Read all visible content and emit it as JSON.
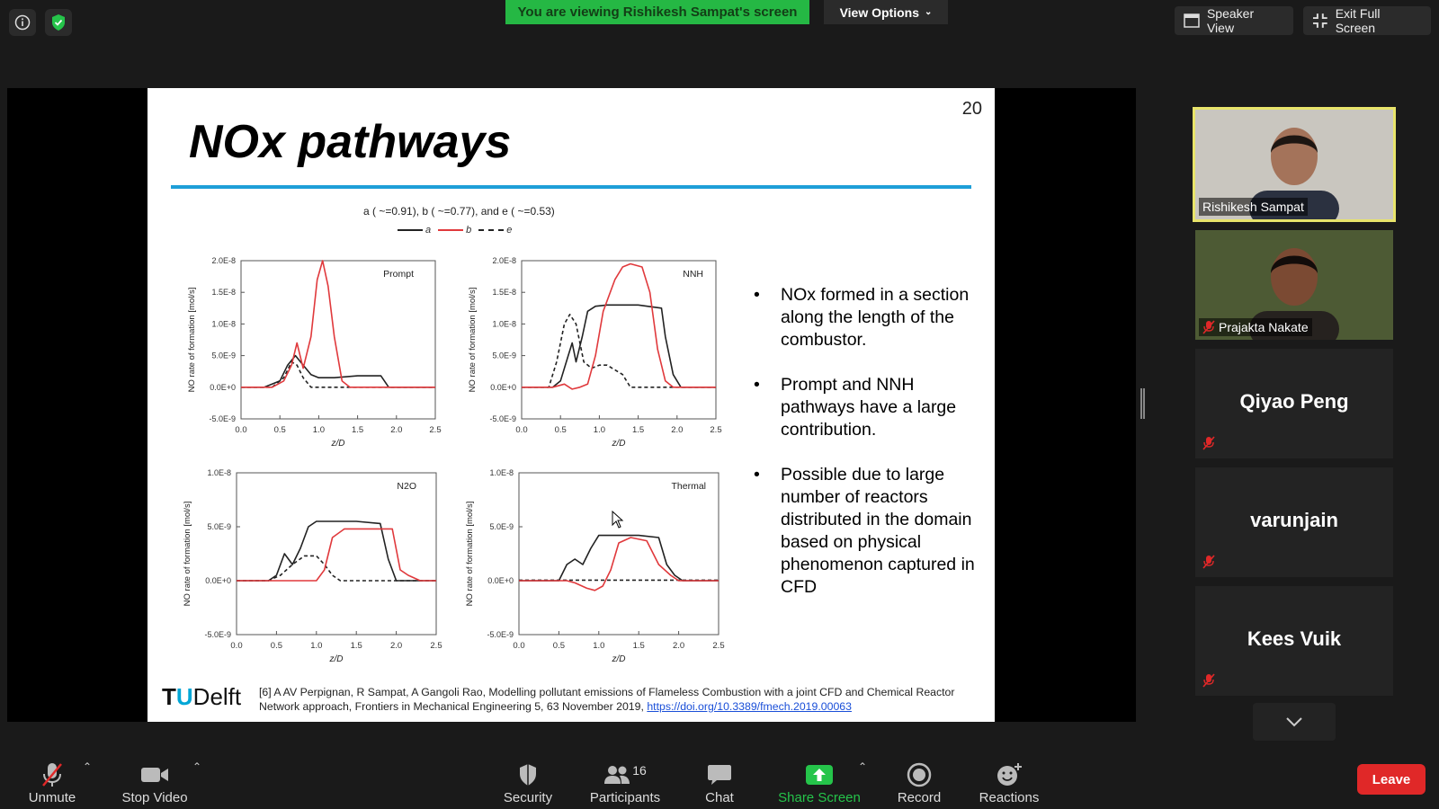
{
  "top_bar": {
    "share_banner": "You are viewing Rishikesh Sampat's screen",
    "view_options": "View Options",
    "speaker_view": "Speaker View",
    "exit_full_screen": "Exit Full Screen"
  },
  "slide": {
    "number": "20",
    "title": "NOx pathways",
    "chart_caption": "a ( ~=0.91), b ( ~=0.77), and e ( ~=0.53)",
    "legend": [
      "a",
      "b",
      "e"
    ],
    "bullets": [
      "NOx formed in a section along the length of the combustor.",
      "Prompt and NNH pathways have a large contribution.",
      "Possible due to large number of reactors distributed in the domain based on physical phenomenon captured in CFD"
    ],
    "logo_t": "T",
    "logo_u": "U",
    "logo_rest": "Delft",
    "reference_text": "[6] A AV Perpignan, R Sampat, A Gangoli Rao, Modelling pollutant emissions of Flameless Combustion with a joint CFD and Chemical Reactor Network approach, Frontiers in Mechanical Engineering 5, 63 November 2019,",
    "reference_link": "https://doi.org/10.3389/fmech.2019.00063"
  },
  "chart_data": [
    {
      "type": "line",
      "title": "Prompt",
      "xlabel": "z/D",
      "ylabel": "NO rate of formation [mol/s]",
      "xlim": [
        0,
        2.5
      ],
      "ylim": [
        -5e-09,
        2e-08
      ],
      "x_ticks": [
        "0.0",
        "0.5",
        "1.0",
        "1.5",
        "2.0",
        "2.5"
      ],
      "y_ticks": [
        "-5.0E-9",
        "0.0E+0",
        "5.0E-9",
        "1.0E-8",
        "1.5E-8",
        "2.0E-8"
      ],
      "series": [
        {
          "name": "a",
          "color": "#222222",
          "dash": false,
          "x": [
            0,
            0.3,
            0.5,
            0.6,
            0.7,
            0.8,
            0.9,
            1.0,
            1.2,
            1.5,
            1.8,
            1.9,
            2.5
          ],
          "y": [
            0,
            0,
            1e-09,
            3.5e-09,
            5e-09,
            3.5e-09,
            2e-09,
            1.5e-09,
            1.5e-09,
            1.8e-09,
            1.8e-09,
            0,
            0
          ]
        },
        {
          "name": "b",
          "color": "#e0393c",
          "dash": false,
          "x": [
            0,
            0.4,
            0.55,
            0.65,
            0.72,
            0.8,
            0.9,
            0.98,
            1.05,
            1.12,
            1.2,
            1.3,
            1.4,
            2.5
          ],
          "y": [
            0,
            0,
            1e-09,
            3.5e-09,
            7e-09,
            3e-09,
            8e-09,
            1.7e-08,
            2e-08,
            1.6e-08,
            8e-09,
            1e-09,
            0,
            0
          ]
        },
        {
          "name": "e",
          "color": "#222222",
          "dash": true,
          "x": [
            0,
            0.4,
            0.55,
            0.65,
            0.72,
            0.8,
            0.9,
            2.5
          ],
          "y": [
            0,
            0,
            1.5e-09,
            4e-09,
            3.5e-09,
            1.5e-09,
            0,
            0
          ]
        }
      ]
    },
    {
      "type": "line",
      "title": "NNH",
      "xlabel": "z/D",
      "ylabel": "NO rate of formation [mol/s]",
      "xlim": [
        0,
        2.5
      ],
      "ylim": [
        -5e-09,
        2e-08
      ],
      "x_ticks": [
        "0.0",
        "0.5",
        "1.0",
        "1.5",
        "2.0",
        "2.5"
      ],
      "y_ticks": [
        "-5.0E-9",
        "0.0E+0",
        "5.0E-9",
        "1.0E-8",
        "1.5E-8",
        "2.0E-8"
      ],
      "series": [
        {
          "name": "a",
          "color": "#222222",
          "dash": false,
          "x": [
            0,
            0.4,
            0.5,
            0.6,
            0.65,
            0.7,
            0.78,
            0.85,
            0.95,
            1.1,
            1.5,
            1.8,
            1.85,
            1.95,
            2.05,
            2.5
          ],
          "y": [
            0,
            0,
            1e-09,
            5e-09,
            7e-09,
            4e-09,
            8e-09,
            1.2e-08,
            1.28e-08,
            1.3e-08,
            1.3e-08,
            1.25e-08,
            8e-09,
            2e-09,
            0,
            0
          ]
        },
        {
          "name": "b",
          "color": "#e0393c",
          "dash": false,
          "x": [
            0,
            0.4,
            0.55,
            0.65,
            0.75,
            0.85,
            0.95,
            1.05,
            1.2,
            1.3,
            1.4,
            1.55,
            1.65,
            1.75,
            1.85,
            1.95,
            2.5
          ],
          "y": [
            0,
            0,
            5e-10,
            -3e-10,
            0,
            5e-10,
            5e-09,
            1.2e-08,
            1.7e-08,
            1.9e-08,
            1.95e-08,
            1.9e-08,
            1.5e-08,
            6e-09,
            1e-09,
            0,
            0
          ]
        },
        {
          "name": "e",
          "color": "#222222",
          "dash": true,
          "x": [
            0,
            0.35,
            0.45,
            0.55,
            0.62,
            0.7,
            0.8,
            0.9,
            1.0,
            1.1,
            1.3,
            1.4,
            1.5,
            2.5
          ],
          "y": [
            0,
            0,
            4e-09,
            1e-08,
            1.15e-08,
            1e-08,
            4e-09,
            3e-09,
            3.5e-09,
            3.5e-09,
            2e-09,
            0,
            0,
            0
          ]
        }
      ]
    },
    {
      "type": "line",
      "title": "N2O",
      "xlabel": "z/D",
      "ylabel": "NO rate of formation [mol/s]",
      "xlim": [
        0,
        2.5
      ],
      "ylim": [
        -5e-09,
        1e-08
      ],
      "x_ticks": [
        "0.0",
        "0.5",
        "1.0",
        "1.5",
        "2.0",
        "2.5"
      ],
      "y_ticks": [
        "-5.0E-9",
        "0.0E+0",
        "5.0E-9",
        "1.0E-8"
      ],
      "series": [
        {
          "name": "a",
          "color": "#222222",
          "dash": false,
          "x": [
            0,
            0.4,
            0.5,
            0.6,
            0.7,
            0.8,
            0.9,
            1.0,
            1.5,
            1.8,
            1.9,
            2.0,
            2.5
          ],
          "y": [
            0,
            0,
            5e-10,
            2.5e-09,
            1.5e-09,
            3e-09,
            5e-09,
            5.5e-09,
            5.5e-09,
            5.3e-09,
            2e-09,
            0,
            0
          ]
        },
        {
          "name": "b",
          "color": "#e0393c",
          "dash": false,
          "x": [
            0,
            0.9,
            1.0,
            1.1,
            1.2,
            1.35,
            1.5,
            1.95,
            2.05,
            2.15,
            2.3,
            2.5
          ],
          "y": [
            0,
            0,
            0,
            1e-09,
            4e-09,
            4.8e-09,
            4.8e-09,
            4.8e-09,
            1e-09,
            5e-10,
            0,
            0
          ]
        },
        {
          "name": "e",
          "color": "#222222",
          "dash": true,
          "x": [
            0,
            0.4,
            0.55,
            0.7,
            0.85,
            1.0,
            1.1,
            1.2,
            1.3,
            2.5
          ],
          "y": [
            0,
            0,
            5e-10,
            1.5e-09,
            2.3e-09,
            2.3e-09,
            1.5e-09,
            5e-10,
            0,
            0
          ]
        }
      ]
    },
    {
      "type": "line",
      "title": "Thermal",
      "xlabel": "z/D",
      "ylabel": "NO rate of formation [mol/s]",
      "xlim": [
        0,
        2.5
      ],
      "ylim": [
        -5e-09,
        1e-08
      ],
      "x_ticks": [
        "0.0",
        "0.5",
        "1.0",
        "1.5",
        "2.0",
        "2.5"
      ],
      "y_ticks": [
        "-5.0E-9",
        "0.0E+0",
        "5.0E-9",
        "1.0E-8"
      ],
      "series": [
        {
          "name": "a",
          "color": "#222222",
          "dash": false,
          "x": [
            0,
            0.5,
            0.6,
            0.7,
            0.8,
            0.9,
            1.0,
            1.5,
            1.75,
            1.85,
            1.95,
            2.05,
            2.5
          ],
          "y": [
            0,
            0,
            1.5e-09,
            2e-09,
            1.5e-09,
            3e-09,
            4.2e-09,
            4.2e-09,
            4e-09,
            1.5e-09,
            5e-10,
            0,
            0
          ]
        },
        {
          "name": "b",
          "color": "#e0393c",
          "dash": false,
          "x": [
            0,
            0.6,
            0.7,
            0.85,
            0.95,
            1.05,
            1.15,
            1.25,
            1.4,
            1.6,
            1.75,
            1.9,
            2.0,
            2.5
          ],
          "y": [
            0,
            0,
            -2e-10,
            -7e-10,
            -9e-10,
            -5e-10,
            1e-09,
            3.5e-09,
            4e-09,
            3.7e-09,
            1.5e-09,
            5e-10,
            0,
            0
          ]
        },
        {
          "name": "e",
          "color": "#222222",
          "dash": true,
          "x": [
            0,
            2.5
          ],
          "y": [
            5e-11,
            5e-11
          ]
        }
      ]
    }
  ],
  "participants": [
    {
      "name": "Rishikesh Sampat",
      "video": true,
      "muted": false,
      "active": true
    },
    {
      "name": "Prajakta Nakate",
      "video": true,
      "muted": true,
      "active": false
    },
    {
      "name": "Qiyao Peng",
      "video": false,
      "muted": true,
      "active": false
    },
    {
      "name": "varunjain",
      "video": false,
      "muted": true,
      "active": false
    },
    {
      "name": "Kees Vuik",
      "video": false,
      "muted": true,
      "active": false
    }
  ],
  "toolbar": {
    "unmute": "Unmute",
    "stop_video": "Stop Video",
    "security": "Security",
    "participants": "Participants",
    "participants_count": "16",
    "chat": "Chat",
    "share_screen": "Share Screen",
    "record": "Record",
    "reactions": "Reactions",
    "leave": "Leave"
  },
  "colors": {
    "share_green": "#25b844",
    "accent_blue": "#1e9fd8",
    "leave_red": "#e02828",
    "active_speaker": "#e8e46a",
    "series_red": "#e0393c"
  }
}
